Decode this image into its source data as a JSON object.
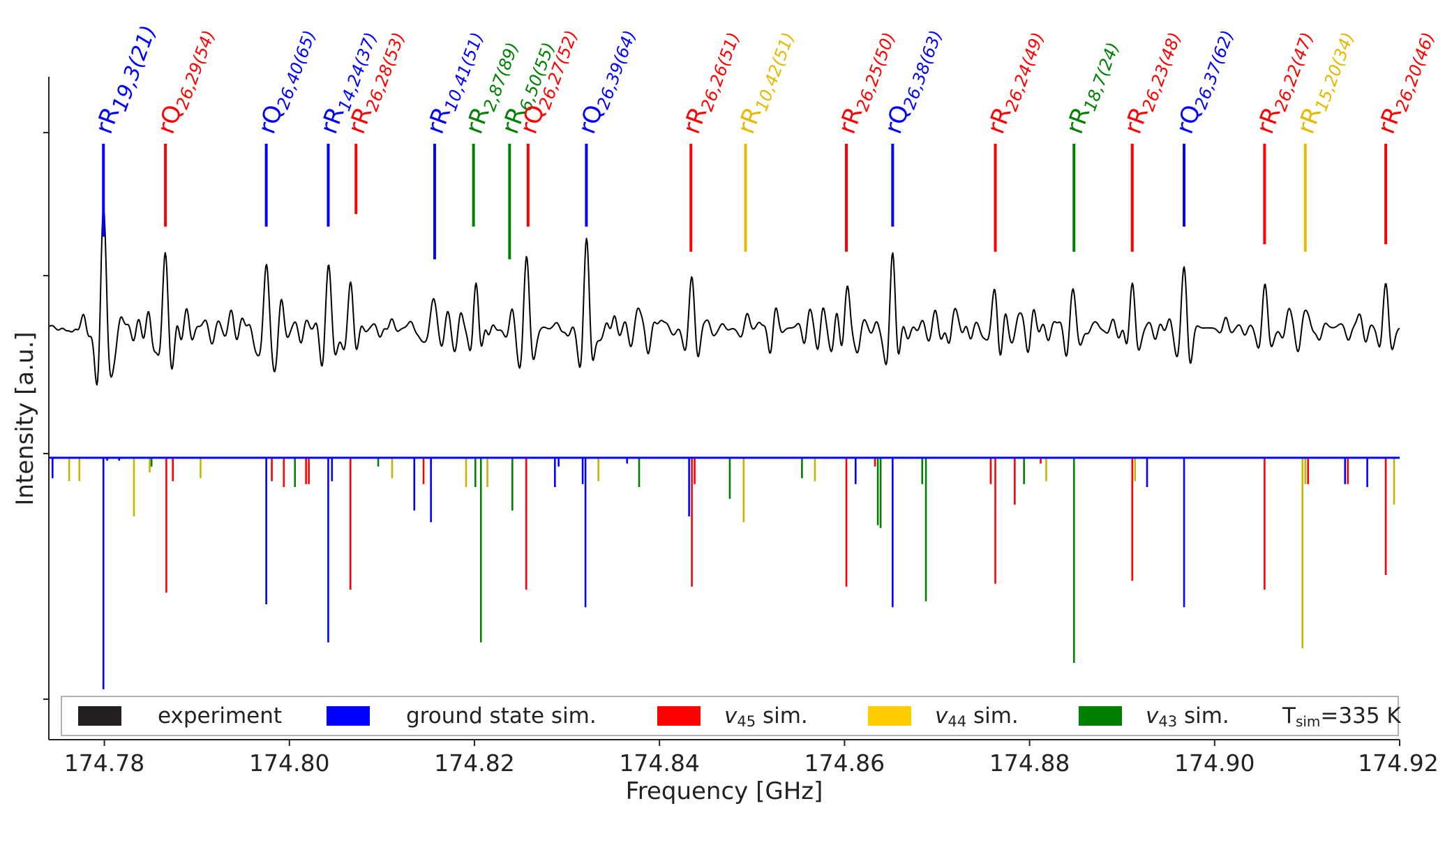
{
  "chart_data": {
    "type": "line",
    "title": "",
    "xlabel": "Frequency [GHz]",
    "ylabel": "Intensity [a.u.]",
    "xlim": [
      174.774,
      174.92
    ],
    "xticks": [
      174.78,
      174.8,
      174.82,
      174.84,
      174.86,
      174.88,
      174.9,
      174.92
    ],
    "xtick_labels": [
      "174.78",
      "174.80",
      "174.82",
      "174.84",
      "174.86",
      "174.88",
      "174.90",
      "174.92"
    ],
    "ylim": [
      -1.0,
      1.05
    ],
    "grid": false,
    "colors": {
      "experiment": "#000000",
      "ground": "#0000ff",
      "v45": "#ff0000",
      "v44": "#c8b400",
      "v43": "#008000",
      "legend_v44": "#ffcc00"
    },
    "experiment_peaks": [
      {
        "x": 174.7799,
        "a": 1.05
      },
      {
        "x": 174.7866,
        "a": 0.54
      },
      {
        "x": 174.7975,
        "a": 0.49
      },
      {
        "x": 174.8042,
        "a": 0.5
      },
      {
        "x": 174.8066,
        "a": 0.36
      },
      {
        "x": 174.8157,
        "a": 0.3
      },
      {
        "x": 174.8202,
        "a": 0.42
      },
      {
        "x": 174.8242,
        "a": 0.25
      },
      {
        "x": 174.8256,
        "a": 0.48
      },
      {
        "x": 174.8321,
        "a": 0.7
      },
      {
        "x": 174.8435,
        "a": 0.4
      },
      {
        "x": 174.8494,
        "a": 0.12
      },
      {
        "x": 174.8602,
        "a": 0.4
      },
      {
        "x": 174.8652,
        "a": 0.6
      },
      {
        "x": 174.8763,
        "a": 0.42
      },
      {
        "x": 174.8848,
        "a": 0.2
      },
      {
        "x": 174.8911,
        "a": 0.38
      },
      {
        "x": 174.8967,
        "a": 0.6
      },
      {
        "x": 174.9054,
        "a": 0.5
      },
      {
        "x": 174.9097,
        "a": 0.15
      },
      {
        "x": 174.9185,
        "a": 0.38
      }
    ],
    "sim_sticks": [
      {
        "x": 174.7744,
        "h": 0.07,
        "s": "ground"
      },
      {
        "x": 174.7762,
        "h": 0.08,
        "s": "v44"
      },
      {
        "x": 174.7773,
        "h": 0.08,
        "s": "v44"
      },
      {
        "x": 174.7799,
        "h": 0.79,
        "s": "ground"
      },
      {
        "x": 174.7803,
        "h": 0.01,
        "s": "ground"
      },
      {
        "x": 174.7816,
        "h": 0.01,
        "s": "ground"
      },
      {
        "x": 174.7832,
        "h": 0.2,
        "s": "v44"
      },
      {
        "x": 174.7849,
        "h": 0.05,
        "s": "v44"
      },
      {
        "x": 174.7851,
        "h": 0.03,
        "s": "v43"
      },
      {
        "x": 174.7867,
        "h": 0.46,
        "s": "v45"
      },
      {
        "x": 174.7874,
        "h": 0.08,
        "s": "v45"
      },
      {
        "x": 174.7904,
        "h": 0.07,
        "s": "v44"
      },
      {
        "x": 174.7975,
        "h": 0.5,
        "s": "ground"
      },
      {
        "x": 174.7981,
        "h": 0.08,
        "s": "v45"
      },
      {
        "x": 174.7994,
        "h": 0.1,
        "s": "v45"
      },
      {
        "x": 174.8006,
        "h": 0.1,
        "s": "v43"
      },
      {
        "x": 174.8018,
        "h": 0.09,
        "s": "v45"
      },
      {
        "x": 174.8021,
        "h": 0.09,
        "s": "v45"
      },
      {
        "x": 174.8042,
        "h": 0.63,
        "s": "ground"
      },
      {
        "x": 174.8046,
        "h": 0.08,
        "s": "ground"
      },
      {
        "x": 174.8066,
        "h": 0.45,
        "s": "v45"
      },
      {
        "x": 174.8096,
        "h": 0.03,
        "s": "v43"
      },
      {
        "x": 174.8111,
        "h": 0.07,
        "s": "v44"
      },
      {
        "x": 174.8135,
        "h": 0.18,
        "s": "ground"
      },
      {
        "x": 174.8145,
        "h": 0.09,
        "s": "v45"
      },
      {
        "x": 174.8153,
        "h": 0.22,
        "s": "ground"
      },
      {
        "x": 174.8191,
        "h": 0.1,
        "s": "v44"
      },
      {
        "x": 174.8201,
        "h": 0.1,
        "s": "v43"
      },
      {
        "x": 174.8207,
        "h": 0.63,
        "s": "v43"
      },
      {
        "x": 174.8214,
        "h": 0.1,
        "s": "v44"
      },
      {
        "x": 174.8241,
        "h": 0.18,
        "s": "v43"
      },
      {
        "x": 174.8256,
        "h": 0.45,
        "s": "v45"
      },
      {
        "x": 174.8287,
        "h": 0.1,
        "s": "ground"
      },
      {
        "x": 174.8291,
        "h": 0.03,
        "s": "ground"
      },
      {
        "x": 174.8317,
        "h": 0.09,
        "s": "ground"
      },
      {
        "x": 174.832,
        "h": 0.51,
        "s": "ground"
      },
      {
        "x": 174.8334,
        "h": 0.08,
        "s": "v44"
      },
      {
        "x": 174.8365,
        "h": 0.02,
        "s": "ground"
      },
      {
        "x": 174.8378,
        "h": 0.1,
        "s": "v43"
      },
      {
        "x": 174.8432,
        "h": 0.2,
        "s": "ground"
      },
      {
        "x": 174.8435,
        "h": 0.44,
        "s": "v45"
      },
      {
        "x": 174.8438,
        "h": 0.09,
        "s": "v45"
      },
      {
        "x": 174.8476,
        "h": 0.14,
        "s": "v43"
      },
      {
        "x": 174.8491,
        "h": 0.22,
        "s": "v44"
      },
      {
        "x": 174.8554,
        "h": 0.07,
        "s": "v43"
      },
      {
        "x": 174.8568,
        "h": 0.08,
        "s": "v44"
      },
      {
        "x": 174.8602,
        "h": 0.44,
        "s": "v45"
      },
      {
        "x": 174.8612,
        "h": 0.09,
        "s": "ground"
      },
      {
        "x": 174.8633,
        "h": 0.03,
        "s": "v45"
      },
      {
        "x": 174.8636,
        "h": 0.23,
        "s": "v43"
      },
      {
        "x": 174.8639,
        "h": 0.24,
        "s": "v43"
      },
      {
        "x": 174.8652,
        "h": 0.51,
        "s": "ground"
      },
      {
        "x": 174.8684,
        "h": 0.09,
        "s": "v43"
      },
      {
        "x": 174.8688,
        "h": 0.49,
        "s": "v43"
      },
      {
        "x": 174.8758,
        "h": 0.09,
        "s": "v45"
      },
      {
        "x": 174.8763,
        "h": 0.43,
        "s": "v45"
      },
      {
        "x": 174.8784,
        "h": 0.16,
        "s": "v45"
      },
      {
        "x": 174.8794,
        "h": 0.09,
        "s": "v43"
      },
      {
        "x": 174.8812,
        "h": 0.02,
        "s": "v45"
      },
      {
        "x": 174.8818,
        "h": 0.08,
        "s": "v44"
      },
      {
        "x": 174.8848,
        "h": 0.7,
        "s": "v43"
      },
      {
        "x": 174.8911,
        "h": 0.42,
        "s": "v45"
      },
      {
        "x": 174.8914,
        "h": 0.08,
        "s": "v44"
      },
      {
        "x": 174.8927,
        "h": 0.1,
        "s": "ground"
      },
      {
        "x": 174.8967,
        "h": 0.51,
        "s": "ground"
      },
      {
        "x": 174.9054,
        "h": 0.45,
        "s": "v45"
      },
      {
        "x": 174.9095,
        "h": 0.65,
        "s": "v44"
      },
      {
        "x": 174.9098,
        "h": 0.09,
        "s": "v44"
      },
      {
        "x": 174.9101,
        "h": 0.09,
        "s": "v45"
      },
      {
        "x": 174.9141,
        "h": 0.09,
        "s": "ground"
      },
      {
        "x": 174.9144,
        "h": 0.09,
        "s": "v45"
      },
      {
        "x": 174.9165,
        "h": 0.1,
        "s": "ground"
      },
      {
        "x": 174.9185,
        "h": 0.4,
        "s": "v45"
      },
      {
        "x": 174.9194,
        "h": 0.16,
        "s": "v44"
      }
    ],
    "annotations": [
      {
        "x": 174.7799,
        "color": "#0000ff",
        "base": "rR",
        "sub": "19,3(21)",
        "big": true
      },
      {
        "x": 174.7866,
        "color": "#ff0000",
        "base": "rQ",
        "sub": "26,29(54)"
      },
      {
        "x": 174.7975,
        "color": "#0000ff",
        "base": "rQ",
        "sub": "26,40(65)"
      },
      {
        "x": 174.8042,
        "color": "#0000ff",
        "base": "rR",
        "sub": "14,24(37)"
      },
      {
        "x": 174.8072,
        "color": "#ff0000",
        "base": "rR",
        "sub": "26,28(53)"
      },
      {
        "x": 174.8157,
        "color": "#0000ff",
        "base": "rR",
        "sub": "10,41(51)"
      },
      {
        "x": 174.8199,
        "color": "#008000",
        "base": "rR",
        "sub": "2,87(89)"
      },
      {
        "x": 174.8238,
        "color": "#008000",
        "base": "rR",
        "sub": "6,50(55)"
      },
      {
        "x": 174.8258,
        "color": "#ff0000",
        "base": "rQ",
        "sub": "26,27(52)"
      },
      {
        "x": 174.8321,
        "color": "#0000ff",
        "base": "rQ",
        "sub": "26,39(64)"
      },
      {
        "x": 174.8434,
        "color": "#ff0000",
        "base": "rR",
        "sub": "26,26(51)"
      },
      {
        "x": 174.8493,
        "color": "#e6b800",
        "base": "rR",
        "sub": "10,42(51)"
      },
      {
        "x": 174.8602,
        "color": "#ff0000",
        "base": "rR",
        "sub": "26,25(50)"
      },
      {
        "x": 174.8652,
        "color": "#0000ff",
        "base": "rQ",
        "sub": "26,38(63)"
      },
      {
        "x": 174.8763,
        "color": "#ff0000",
        "base": "rR",
        "sub": "26,24(49)"
      },
      {
        "x": 174.8848,
        "color": "#008000",
        "base": "rR",
        "sub": "18,7(24)"
      },
      {
        "x": 174.8911,
        "color": "#ff0000",
        "base": "rR",
        "sub": "26,23(48)"
      },
      {
        "x": 174.8967,
        "color": "#0000ff",
        "base": "rQ",
        "sub": "26,37(62)"
      },
      {
        "x": 174.9054,
        "color": "#ff0000",
        "base": "rR",
        "sub": "26,22(47)"
      },
      {
        "x": 174.9098,
        "color": "#e6b800",
        "base": "rR",
        "sub": "15,20(34)"
      },
      {
        "x": 174.9185,
        "color": "#ff0000",
        "base": "rR",
        "sub": "26,20(46)"
      }
    ],
    "annotation_line_lengths": [
      0.37,
      0.33,
      0.33,
      0.33,
      0.28,
      0.46,
      0.33,
      0.46,
      0.33,
      0.33,
      0.43,
      0.43,
      0.43,
      0.33,
      0.43,
      0.43,
      0.43,
      0.33,
      0.4,
      0.43,
      0.4
    ],
    "legend": {
      "entries": [
        {
          "label_main": "experiment",
          "label_sub": "",
          "label_tail": "",
          "color": "#231f20"
        },
        {
          "label_main": "ground state sim.",
          "label_sub": "",
          "label_tail": "",
          "color": "#0000ff"
        },
        {
          "label_main": "v",
          "label_sub": "45",
          "label_tail": " sim.",
          "color": "#ff0000"
        },
        {
          "label_main": "v",
          "label_sub": "44",
          "label_tail": " sim.",
          "color": "#ffcc00"
        },
        {
          "label_main": "v",
          "label_sub": "43",
          "label_tail": " sim.",
          "color": "#008000"
        }
      ],
      "temperature": {
        "main": "T",
        "sub": "sim",
        "tail": "=335 K"
      }
    }
  }
}
